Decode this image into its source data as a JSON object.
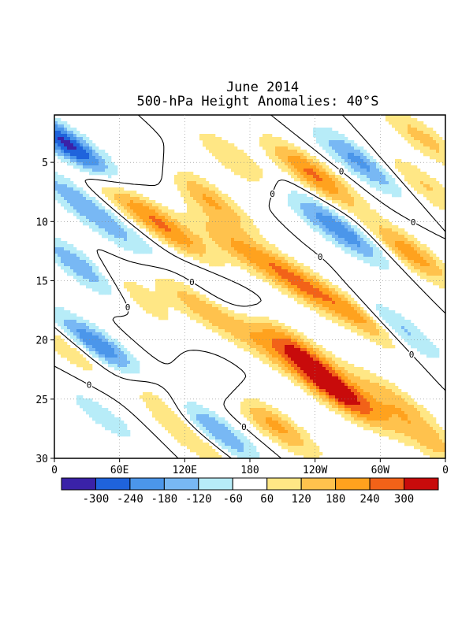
{
  "chart_data": {
    "type": "heatmap",
    "title": "June 2014",
    "subtitle": "500-hPa Height Anomalies: 40°S",
    "xlabel": "",
    "ylabel": "",
    "x_tick_labels": [
      "0",
      "60E",
      "120E",
      "180",
      "120W",
      "60W",
      "0"
    ],
    "x_tick_lon": [
      0,
      60,
      120,
      180,
      240,
      300,
      360
    ],
    "y_tick_labels": [
      "5",
      "10",
      "15",
      "20",
      "25",
      "30"
    ],
    "y_tick_values": [
      5,
      10,
      15,
      20,
      25,
      30
    ],
    "xlim": [
      0,
      360
    ],
    "ylim": [
      1,
      30
    ],
    "contour_label": "0",
    "colorbar": {
      "labels": [
        "-300",
        "-240",
        "-180",
        "-120",
        "-60",
        "60",
        "120",
        "180",
        "240",
        "300"
      ],
      "colors": [
        "#3a22a8",
        "#1f63dc",
        "#4b96ea",
        "#78b8f4",
        "#b7ecf8",
        "#ffffff",
        "#ffe785",
        "#ffc24d",
        "#ffa21e",
        "#f26218",
        "#c80b0b"
      ],
      "bounds": [
        -300,
        -240,
        -180,
        -120,
        -60,
        60,
        120,
        180,
        240,
        300
      ]
    },
    "anomaly_features": [
      {
        "lon": 12,
        "day": 3.5,
        "value": -320
      },
      {
        "lon": 18,
        "day": 8,
        "value": -140
      },
      {
        "lon": 28,
        "day": 14,
        "value": -200
      },
      {
        "lon": 40,
        "day": 20.5,
        "value": -250
      },
      {
        "lon": 45,
        "day": 26.5,
        "value": -90
      },
      {
        "lon": 60,
        "day": 11,
        "value": -100
      },
      {
        "lon": 90,
        "day": 5,
        "value": -80
      },
      {
        "lon": 140,
        "day": 23,
        "value": -200
      },
      {
        "lon": 145,
        "day": 27.5,
        "value": -220
      },
      {
        "lon": 150,
        "day": 15.5,
        "value": -70
      },
      {
        "lon": 225,
        "day": 8.5,
        "value": -70
      },
      {
        "lon": 268,
        "day": 11,
        "value": -200
      },
      {
        "lon": 282,
        "day": 5,
        "value": -200
      },
      {
        "lon": 315,
        "day": 19,
        "value": -170
      },
      {
        "lon": 350,
        "day": 14,
        "value": -90
      },
      {
        "lon": 10,
        "day": 20.5,
        "value": 120
      },
      {
        "lon": 70,
        "day": 8.5,
        "value": 130
      },
      {
        "lon": 70,
        "day": 16,
        "value": 130
      },
      {
        "lon": 100,
        "day": 25,
        "value": 120
      },
      {
        "lon": 110,
        "day": 11,
        "value": 190
      },
      {
        "lon": 125,
        "day": 22,
        "value": 140
      },
      {
        "lon": 130,
        "day": 17,
        "value": 140
      },
      {
        "lon": 130,
        "day": 28.5,
        "value": 120
      },
      {
        "lon": 140,
        "day": 8,
        "value": 200
      },
      {
        "lon": 165,
        "day": 12,
        "value": 150
      },
      {
        "lon": 170,
        "day": 5,
        "value": 130
      },
      {
        "lon": 185,
        "day": 20,
        "value": 120
      },
      {
        "lon": 200,
        "day": 27,
        "value": 210
      },
      {
        "lon": 222,
        "day": 15,
        "value": 230
      },
      {
        "lon": 226,
        "day": 21,
        "value": 250
      },
      {
        "lon": 238,
        "day": 6,
        "value": 250
      },
      {
        "lon": 250,
        "day": 24,
        "value": 200
      },
      {
        "lon": 275,
        "day": 25,
        "value": 170
      },
      {
        "lon": 282,
        "day": 18,
        "value": 220
      },
      {
        "lon": 312,
        "day": 25,
        "value": 140
      },
      {
        "lon": 333,
        "day": 13,
        "value": 290
      },
      {
        "lon": 340,
        "day": 3,
        "value": 140
      },
      {
        "lon": 340,
        "day": 7,
        "value": 130
      },
      {
        "lon": 345,
        "day": 28.5,
        "value": 130
      }
    ]
  }
}
